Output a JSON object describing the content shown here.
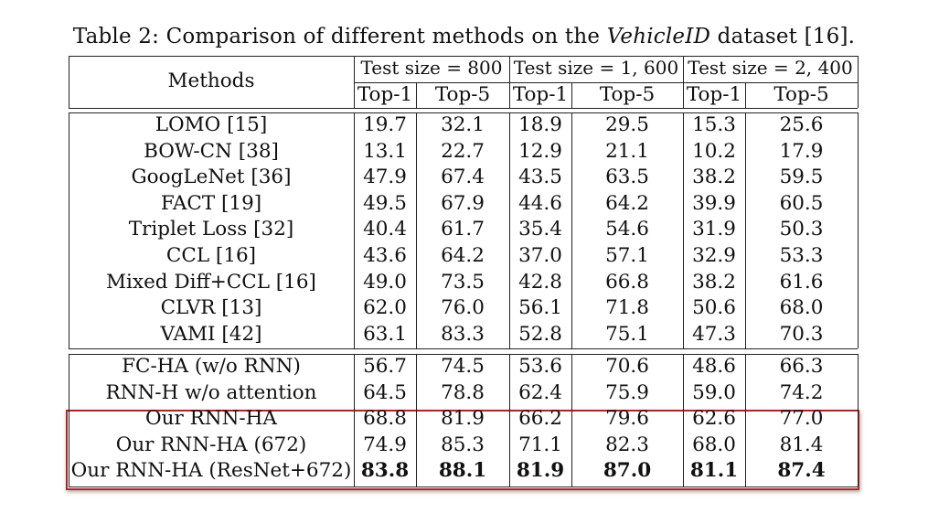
{
  "caption": {
    "prefix": "Table 2: Comparison of different methods on the ",
    "dataset": "VehicleID",
    "suffix": " dataset [16]."
  },
  "header": {
    "methods": "Methods",
    "groups": [
      "Test size = 800",
      "Test size = 1, 600",
      "Test size = 2, 400"
    ],
    "metrics": [
      "Top-1",
      "Top-5",
      "Top-1",
      "Top-5",
      "Top-1",
      "Top-5"
    ]
  },
  "rows": [
    {
      "method": "LOMO [15]",
      "values": [
        "19.7",
        "32.1",
        "18.9",
        "29.5",
        "15.3",
        "25.6"
      ]
    },
    {
      "method": "BOW-CN [38]",
      "values": [
        "13.1",
        "22.7",
        "12.9",
        "21.1",
        "10.2",
        "17.9"
      ]
    },
    {
      "method": "GoogLeNet [36]",
      "values": [
        "47.9",
        "67.4",
        "43.5",
        "63.5",
        "38.2",
        "59.5"
      ]
    },
    {
      "method": "FACT [19]",
      "values": [
        "49.5",
        "67.9",
        "44.6",
        "64.2",
        "39.9",
        "60.5"
      ]
    },
    {
      "method": "Triplet Loss [32]",
      "values": [
        "40.4",
        "61.7",
        "35.4",
        "54.6",
        "31.9",
        "50.3"
      ]
    },
    {
      "method": "CCL [16]",
      "values": [
        "43.6",
        "64.2",
        "37.0",
        "57.1",
        "32.9",
        "53.3"
      ]
    },
    {
      "method": "Mixed Diff+CCL [16]",
      "values": [
        "49.0",
        "73.5",
        "42.8",
        "66.8",
        "38.2",
        "61.6"
      ]
    },
    {
      "method": "CLVR [13]",
      "values": [
        "62.0",
        "76.0",
        "56.1",
        "71.8",
        "50.6",
        "68.0"
      ]
    },
    {
      "method": "VAMI [42]",
      "values": [
        "63.1",
        "83.3",
        "52.8",
        "75.1",
        "47.3",
        "70.3"
      ]
    },
    {
      "method": "FC-HA (w/o RNN)",
      "values": [
        "56.7",
        "74.5",
        "53.6",
        "70.6",
        "48.6",
        "66.3"
      ]
    },
    {
      "method": "RNN-H w/o attention",
      "values": [
        "64.5",
        "78.8",
        "62.4",
        "75.9",
        "59.0",
        "74.2"
      ]
    },
    {
      "method": "Our RNN-HA",
      "values": [
        "68.8",
        "81.9",
        "66.2",
        "79.6",
        "62.6",
        "77.0"
      ]
    },
    {
      "method": "Our RNN-HA (672)",
      "values": [
        "74.9",
        "85.3",
        "71.1",
        "82.3",
        "68.0",
        "81.4"
      ]
    },
    {
      "method": "Our RNN-HA (ResNet+672)",
      "values": [
        "83.8",
        "88.1",
        "81.9",
        "87.0",
        "81.1",
        "87.4"
      ],
      "bold": true
    }
  ],
  "colors": {
    "highlight_border": "#a52a2a",
    "rule": "#222222"
  }
}
